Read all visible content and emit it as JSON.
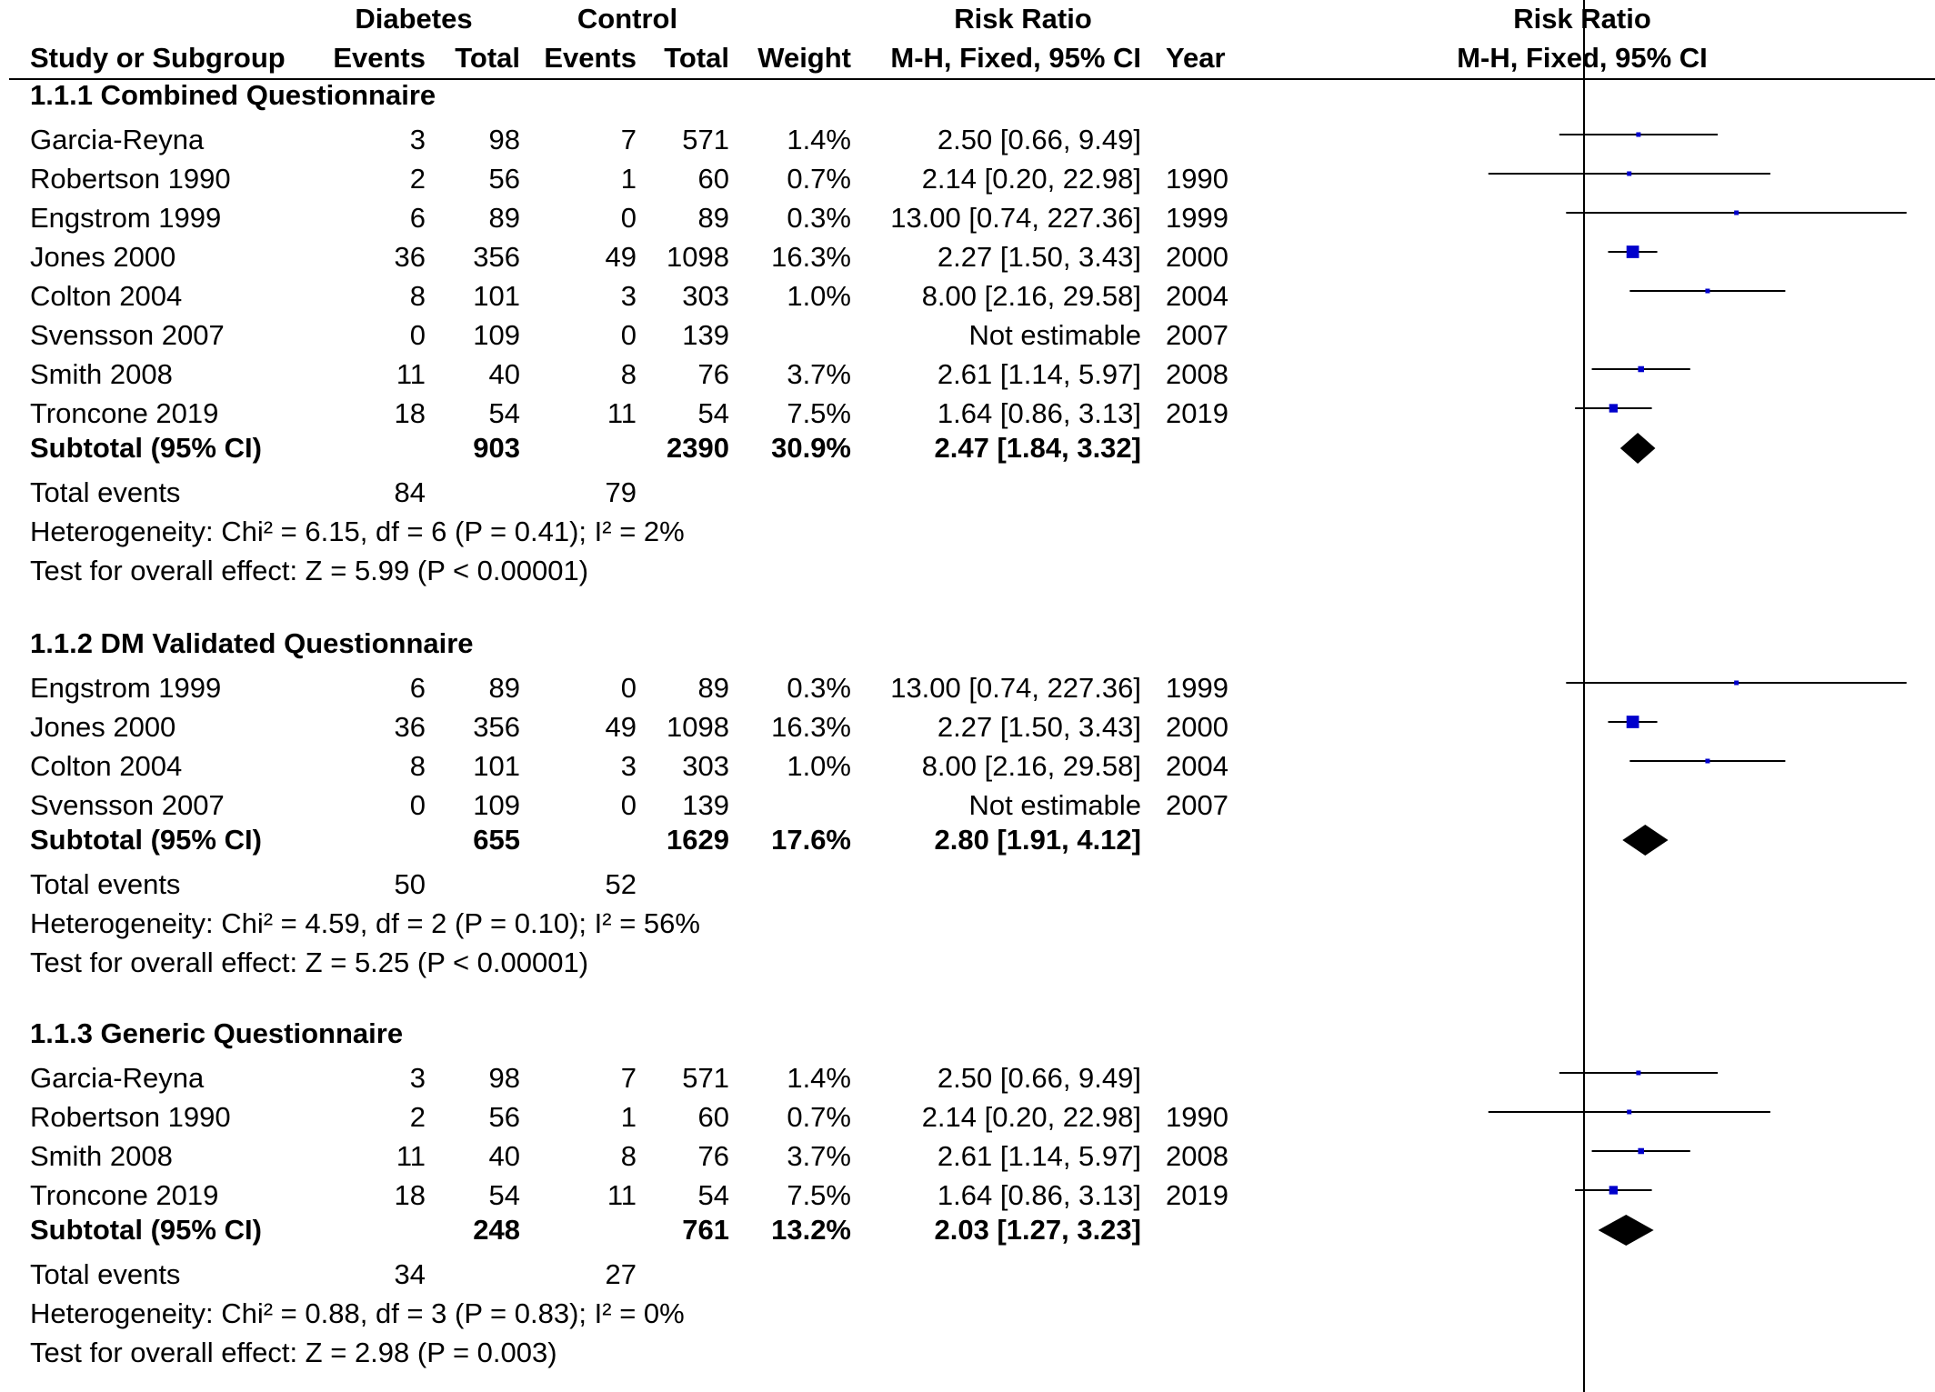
{
  "headers": {
    "diabetes": "Diabetes",
    "control": "Control",
    "rr_top": "Risk Ratio",
    "study": "Study or Subgroup",
    "events1": "Events",
    "total1": "Total",
    "events2": "Events",
    "total2": "Total",
    "weight": "Weight",
    "rr_method": "M-H, Fixed, 95% CI",
    "year": "Year",
    "plot_top": "Risk Ratio",
    "plot_method": "M-H, Fixed, 95% CI"
  },
  "colors": {
    "study_marker": "#0000cc",
    "diamond": "#000000",
    "line": "#000000"
  },
  "chart_data": {
    "type": "forest",
    "x_scale": "log",
    "null_line": 1,
    "groups": [
      {
        "title": "1.1.1 Combined Questionnaire",
        "studies": [
          {
            "name": "Garcia-Reyna",
            "e1": "3",
            "n1": "98",
            "e2": "7",
            "n2": "571",
            "weight": "1.4%",
            "ci_text": "2.50 [0.66, 9.49]",
            "year": "",
            "rr": 2.5,
            "lo": 0.66,
            "hi": 9.49
          },
          {
            "name": "Robertson 1990",
            "e1": "2",
            "n1": "56",
            "e2": "1",
            "n2": "60",
            "weight": "0.7%",
            "ci_text": "2.14 [0.20, 22.98]",
            "year": "1990",
            "rr": 2.14,
            "lo": 0.2,
            "hi": 22.98
          },
          {
            "name": "Engstrom 1999",
            "e1": "6",
            "n1": "89",
            "e2": "0",
            "n2": "89",
            "weight": "0.3%",
            "ci_text": "13.00 [0.74, 227.36]",
            "year": "1999",
            "rr": 13.0,
            "lo": 0.74,
            "hi": 227.36
          },
          {
            "name": "Jones 2000",
            "e1": "36",
            "n1": "356",
            "e2": "49",
            "n2": "1098",
            "weight": "16.3%",
            "ci_text": "2.27 [1.50, 3.43]",
            "year": "2000",
            "rr": 2.27,
            "lo": 1.5,
            "hi": 3.43
          },
          {
            "name": "Colton 2004",
            "e1": "8",
            "n1": "101",
            "e2": "3",
            "n2": "303",
            "weight": "1.0%",
            "ci_text": "8.00 [2.16, 29.58]",
            "year": "2004",
            "rr": 8.0,
            "lo": 2.16,
            "hi": 29.58
          },
          {
            "name": "Svensson 2007",
            "e1": "0",
            "n1": "109",
            "e2": "0",
            "n2": "139",
            "weight": "",
            "ci_text": "Not estimable",
            "year": "2007",
            "rr": null,
            "lo": null,
            "hi": null
          },
          {
            "name": "Smith 2008",
            "e1": "11",
            "n1": "40",
            "e2": "8",
            "n2": "76",
            "weight": "3.7%",
            "ci_text": "2.61 [1.14, 5.97]",
            "year": "2008",
            "rr": 2.61,
            "lo": 1.14,
            "hi": 5.97
          },
          {
            "name": "Troncone 2019",
            "e1": "18",
            "n1": "54",
            "e2": "11",
            "n2": "54",
            "weight": "7.5%",
            "ci_text": "1.64 [0.86, 3.13]",
            "year": "2019",
            "rr": 1.64,
            "lo": 0.86,
            "hi": 3.13
          }
        ],
        "subtotal": {
          "label": "Subtotal (95% CI)",
          "n1": "903",
          "n2": "2390",
          "weight": "30.9%",
          "ci_text": "2.47 [1.84, 3.32]",
          "rr": 2.47,
          "lo": 1.84,
          "hi": 3.32
        },
        "total_events": {
          "label": "Total events",
          "e1": "84",
          "e2": "79"
        },
        "heterogeneity": "Heterogeneity: Chi² = 6.15, df = 6 (P = 0.41); I² = 2%",
        "overall": "Test for overall effect: Z = 5.99 (P < 0.00001)"
      },
      {
        "title": "1.1.2 DM Validated Questionnaire",
        "studies": [
          {
            "name": "Engstrom 1999",
            "e1": "6",
            "n1": "89",
            "e2": "0",
            "n2": "89",
            "weight": "0.3%",
            "ci_text": "13.00 [0.74, 227.36]",
            "year": "1999",
            "rr": 13.0,
            "lo": 0.74,
            "hi": 227.36
          },
          {
            "name": "Jones 2000",
            "e1": "36",
            "n1": "356",
            "e2": "49",
            "n2": "1098",
            "weight": "16.3%",
            "ci_text": "2.27 [1.50, 3.43]",
            "year": "2000",
            "rr": 2.27,
            "lo": 1.5,
            "hi": 3.43
          },
          {
            "name": "Colton 2004",
            "e1": "8",
            "n1": "101",
            "e2": "3",
            "n2": "303",
            "weight": "1.0%",
            "ci_text": "8.00 [2.16, 29.58]",
            "year": "2004",
            "rr": 8.0,
            "lo": 2.16,
            "hi": 29.58
          },
          {
            "name": "Svensson 2007",
            "e1": "0",
            "n1": "109",
            "e2": "0",
            "n2": "139",
            "weight": "",
            "ci_text": "Not estimable",
            "year": "2007",
            "rr": null,
            "lo": null,
            "hi": null
          }
        ],
        "subtotal": {
          "label": "Subtotal (95% CI)",
          "n1": "655",
          "n2": "1629",
          "weight": "17.6%",
          "ci_text": "2.80 [1.91, 4.12]",
          "rr": 2.8,
          "lo": 1.91,
          "hi": 4.12
        },
        "total_events": {
          "label": "Total events",
          "e1": "50",
          "e2": "52"
        },
        "heterogeneity": "Heterogeneity: Chi² = 4.59, df = 2 (P = 0.10); I² = 56%",
        "overall": "Test for overall effect: Z = 5.25 (P < 0.00001)"
      },
      {
        "title": "1.1.3 Generic Questionnaire",
        "studies": [
          {
            "name": "Garcia-Reyna",
            "e1": "3",
            "n1": "98",
            "e2": "7",
            "n2": "571",
            "weight": "1.4%",
            "ci_text": "2.50 [0.66, 9.49]",
            "year": "",
            "rr": 2.5,
            "lo": 0.66,
            "hi": 9.49
          },
          {
            "name": "Robertson 1990",
            "e1": "2",
            "n1": "56",
            "e2": "1",
            "n2": "60",
            "weight": "0.7%",
            "ci_text": "2.14 [0.20, 22.98]",
            "year": "1990",
            "rr": 2.14,
            "lo": 0.2,
            "hi": 22.98
          },
          {
            "name": "Smith 2008",
            "e1": "11",
            "n1": "40",
            "e2": "8",
            "n2": "76",
            "weight": "3.7%",
            "ci_text": "2.61 [1.14, 5.97]",
            "year": "2008",
            "rr": 2.61,
            "lo": 1.14,
            "hi": 5.97
          },
          {
            "name": "Troncone 2019",
            "e1": "18",
            "n1": "54",
            "e2": "11",
            "n2": "54",
            "weight": "7.5%",
            "ci_text": "1.64 [0.86, 3.13]",
            "year": "2019",
            "rr": 1.64,
            "lo": 0.86,
            "hi": 3.13
          }
        ],
        "subtotal": {
          "label": "Subtotal (95% CI)",
          "n1": "248",
          "n2": "761",
          "weight": "13.2%",
          "ci_text": "2.03 [1.27, 3.23]",
          "rr": 2.03,
          "lo": 1.27,
          "hi": 3.23
        },
        "total_events": {
          "label": "Total events",
          "e1": "34",
          "e2": "27"
        },
        "heterogeneity": "Heterogeneity: Chi² = 0.88, df = 3 (P = 0.83); I² = 0%",
        "overall": "Test for overall effect: Z = 2.98 (P = 0.003)"
      }
    ]
  }
}
